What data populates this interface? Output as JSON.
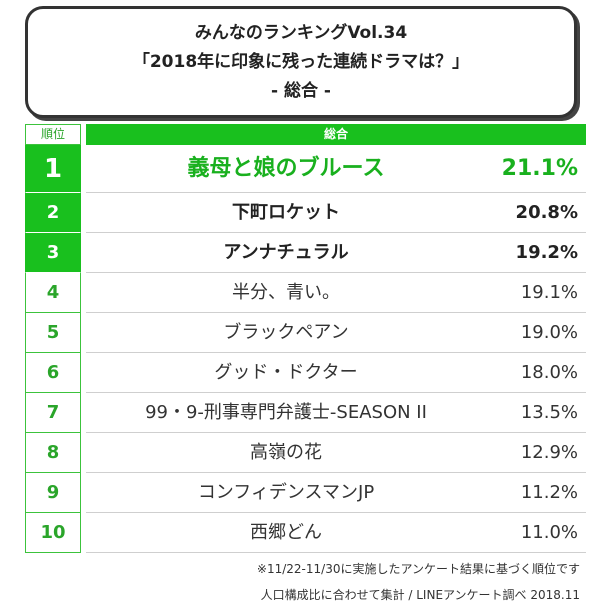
{
  "header": {
    "line1": "みんなのランキングVol.34",
    "line2": "「2018年に印象に残った連続ドラマは？」",
    "line3": "- 総合 -"
  },
  "table": {
    "rank_header": "順位",
    "category_header": "総合"
  },
  "chart_data": {
    "type": "table",
    "title": "「2018年に印象に残った連続ドラマは？」",
    "columns": [
      "順位",
      "総合"
    ],
    "rows": [
      {
        "rank": "1",
        "title": "義母と娘のブルース",
        "percent": "21.1%",
        "value": 21.1
      },
      {
        "rank": "2",
        "title": "下町ロケット",
        "percent": "20.8%",
        "value": 20.8
      },
      {
        "rank": "3",
        "title": "アンナチュラル",
        "percent": "19.2%",
        "value": 19.2
      },
      {
        "rank": "4",
        "title": "半分、青い。",
        "percent": "19.1%",
        "value": 19.1
      },
      {
        "rank": "5",
        "title": "ブラックペアン",
        "percent": "19.0%",
        "value": 19.0
      },
      {
        "rank": "6",
        "title": "グッド・ドクター",
        "percent": "18.0%",
        "value": 18.0
      },
      {
        "rank": "7",
        "title": "99・9-刑事専門弁護士-SEASON II",
        "percent": "13.5%",
        "value": 13.5
      },
      {
        "rank": "8",
        "title": "高嶺の花",
        "percent": "12.9%",
        "value": 12.9
      },
      {
        "rank": "9",
        "title": "コンフィデンスマンJP",
        "percent": "11.2%",
        "value": 11.2
      },
      {
        "rank": "10",
        "title": "西郷どん",
        "percent": "11.0%",
        "value": 11.0
      }
    ]
  },
  "footer": {
    "note": "※11/22-11/30に実施したアンケート結果に基づく順位です",
    "source": "人口構成比に合わせて集計 / LINEアンケート調べ 2018.11"
  },
  "colors": {
    "accent_green": "#19c01e",
    "rank_text_green": "#2aa52a"
  }
}
